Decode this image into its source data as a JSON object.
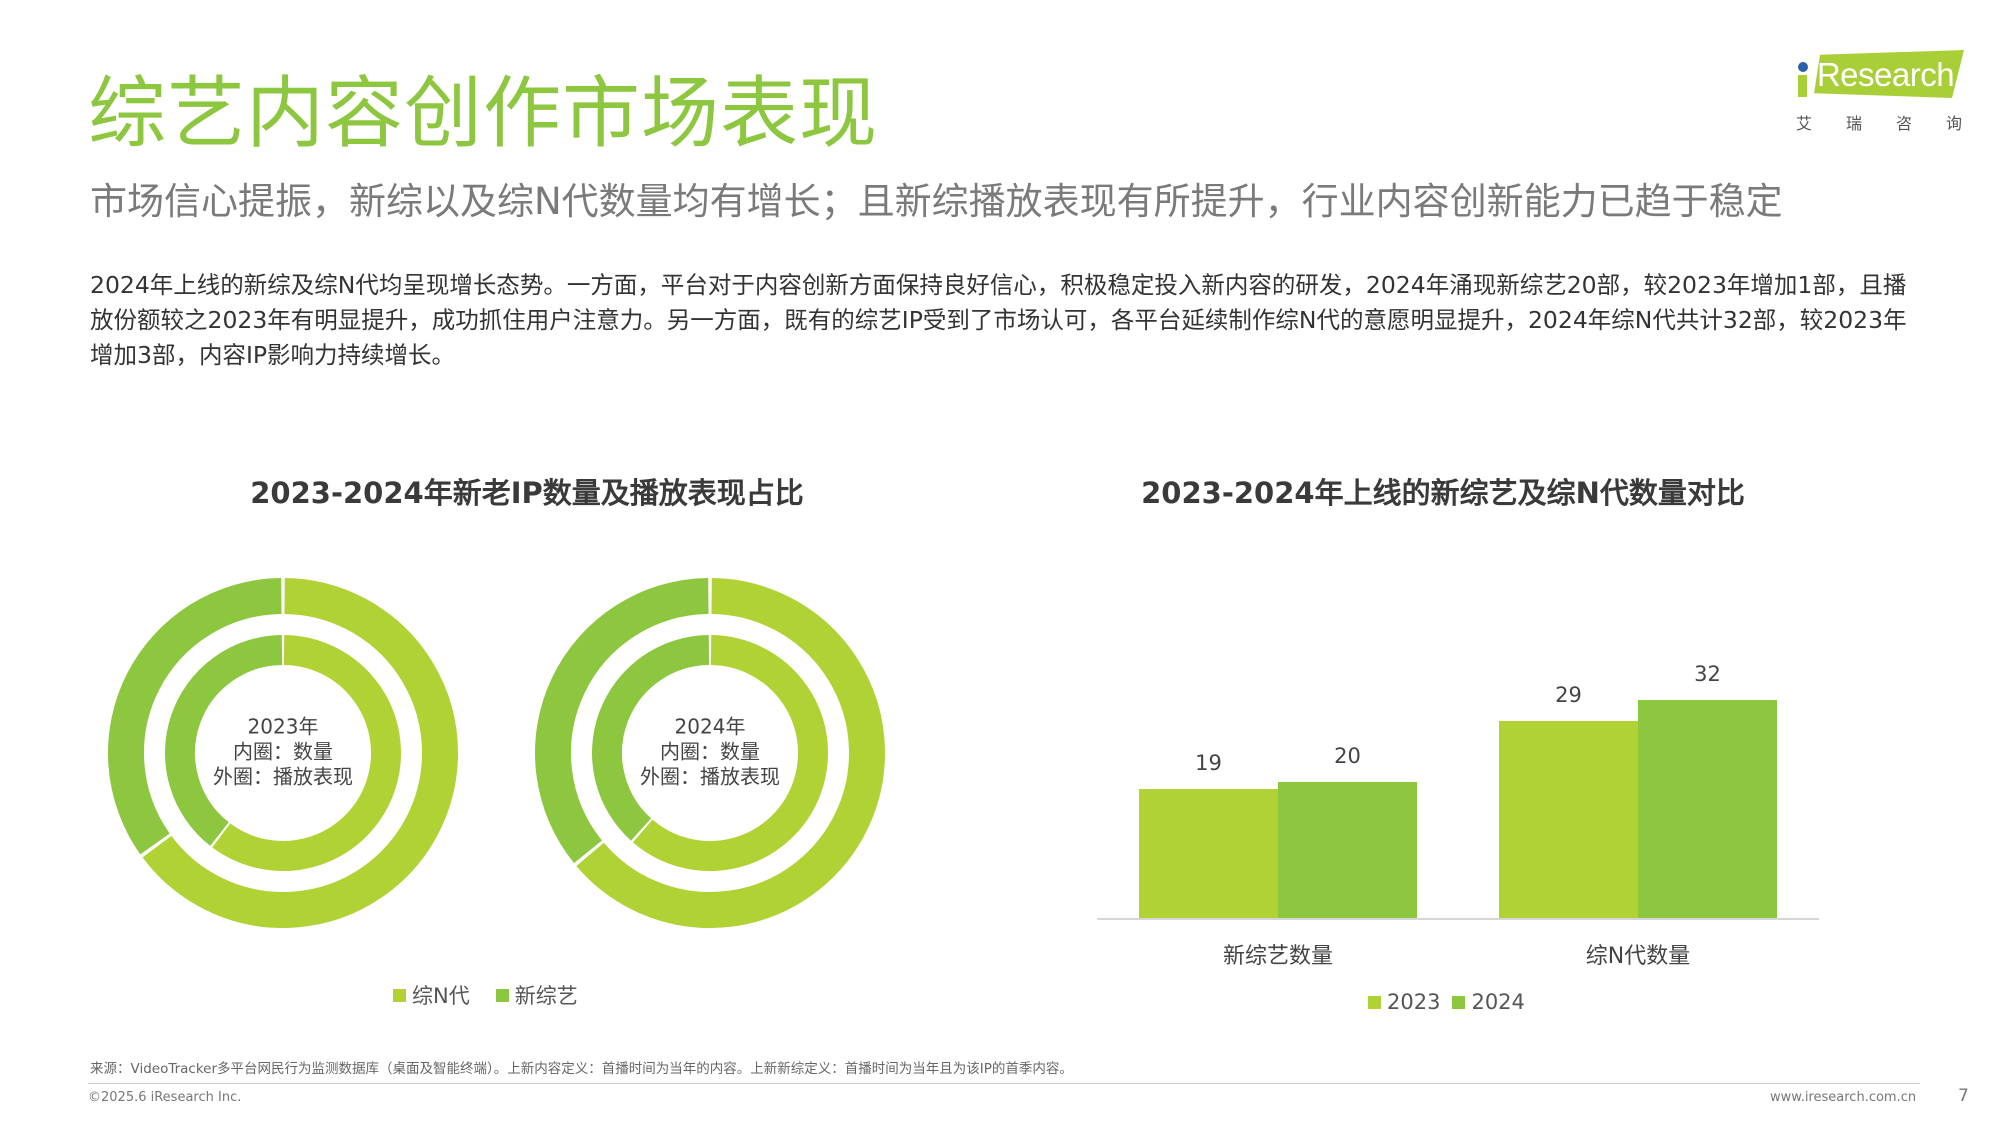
{
  "header": {
    "title": "综艺内容创作市场表现",
    "subtitle": "市场信心提振，新综以及综N代数量均有增长；且新综播放表现有所提升，行业内容创新能力已趋于稳定",
    "logo": {
      "brand": "iResearch",
      "cn_chars": [
        "艾",
        "瑞",
        "咨",
        "询"
      ],
      "band_color": "#a9cf38",
      "dot_color": "#2e5fa8"
    }
  },
  "body_text": "2024年上线的新综及综N代均呈现增长态势。一方面，平台对于内容创新方面保持良好信心，积极稳定投入新内容的研发，2024年涌现新综艺20部，较2023年增加1部，且播放份额较之2023年有明显提升，成功抓住用户注意力。另一方面，既有的综艺IP受到了市场认可，各平台延续制作综N代的意愿明显提升，2024年综N代共计32部，较2023年增加3部，内容IP影响力持续增长。",
  "colors": {
    "light_green": "#b0d235",
    "green": "#8dc63f",
    "title_green": "#8dc63f"
  },
  "donut_section": {
    "title": "2023-2024年新老IP数量及播放表现占比",
    "donuts": [
      {
        "year_label": "2023年",
        "inner_label": "内圈：数量",
        "outer_label": "外圈：播放表现"
      },
      {
        "year_label": "2024年",
        "inner_label": "内圈：数量",
        "outer_label": "外圈：播放表现"
      }
    ],
    "legend": [
      {
        "label": "综N代",
        "color": "#b0d235"
      },
      {
        "label": "新综艺",
        "color": "#8dc63f"
      }
    ]
  },
  "bar_section": {
    "title": "2023-2024年上线的新综艺及综N代数量对比",
    "categories": [
      "新综艺数量",
      "综N代数量"
    ],
    "legend": [
      {
        "label": "2023",
        "color": "#b0d235"
      },
      {
        "label": "2024",
        "color": "#8dc63f"
      }
    ]
  },
  "chart_data": [
    {
      "type": "pie",
      "title": "2023-2024年新老IP数量及播放表现占比",
      "subtitle": "2023年 内圈：数量 外圈：播放表现",
      "rings": [
        {
          "name": "内圈：数量",
          "categories": [
            "综N代",
            "新综艺"
          ],
          "values": [
            60.4,
            39.6
          ],
          "counts": [
            29,
            19
          ]
        },
        {
          "name": "外圈：播放表现",
          "categories": [
            "综N代",
            "新综艺"
          ],
          "values": [
            65,
            35
          ]
        }
      ],
      "legend": [
        "综N代",
        "新综艺"
      ],
      "legend_position": "bottom"
    },
    {
      "type": "pie",
      "title": "2023-2024年新老IP数量及播放表现占比",
      "subtitle": "2024年 内圈：数量 外圈：播放表现",
      "rings": [
        {
          "name": "内圈：数量",
          "categories": [
            "综N代",
            "新综艺"
          ],
          "values": [
            61.5,
            38.5
          ],
          "counts": [
            32,
            20
          ]
        },
        {
          "name": "外圈：播放表现",
          "categories": [
            "综N代",
            "新综艺"
          ],
          "values": [
            64,
            36
          ]
        }
      ],
      "legend": [
        "综N代",
        "新综艺"
      ],
      "legend_position": "bottom"
    },
    {
      "type": "bar",
      "title": "2023-2024年上线的新综艺及综N代数量对比",
      "categories": [
        "新综艺数量",
        "综N代数量"
      ],
      "series": [
        {
          "name": "2023",
          "values": [
            19,
            29
          ],
          "color": "#b0d235"
        },
        {
          "name": "2024",
          "values": [
            20,
            32
          ],
          "color": "#8dc63f"
        }
      ],
      "xlabel": "",
      "ylabel": "",
      "ylim": [
        0,
        35
      ],
      "grid": false,
      "legend_position": "bottom",
      "data_labels": true
    }
  ],
  "footer": {
    "source": "来源：VideoTracker多平台网民行为监测数据库（桌面及智能终端）。上新内容定义：首播时间为当年的内容。上新新综定义：首播时间为当年且为该IP的首季内容。",
    "copyright": "©2025.6 iResearch Inc.",
    "site": "www.iresearch.com.cn",
    "page_number": "7"
  }
}
